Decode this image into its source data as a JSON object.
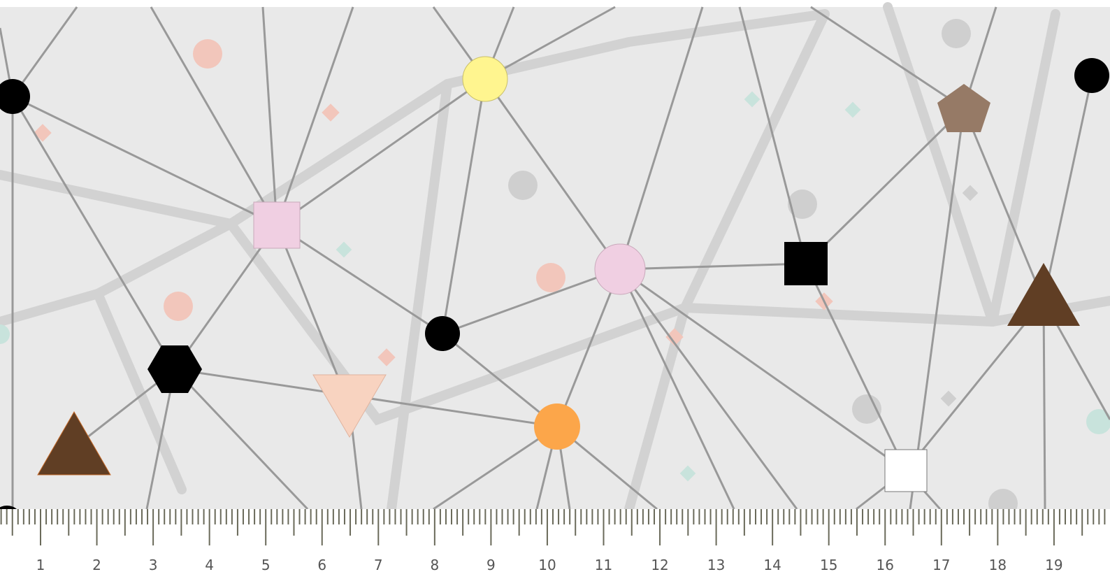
{
  "ruler": {
    "labels": [
      "1",
      "2",
      "3",
      "4",
      "5",
      "6",
      "7",
      "8",
      "9",
      "10",
      "11",
      "12",
      "13",
      "14",
      "15",
      "16",
      "17",
      "18",
      "19"
    ]
  }
}
